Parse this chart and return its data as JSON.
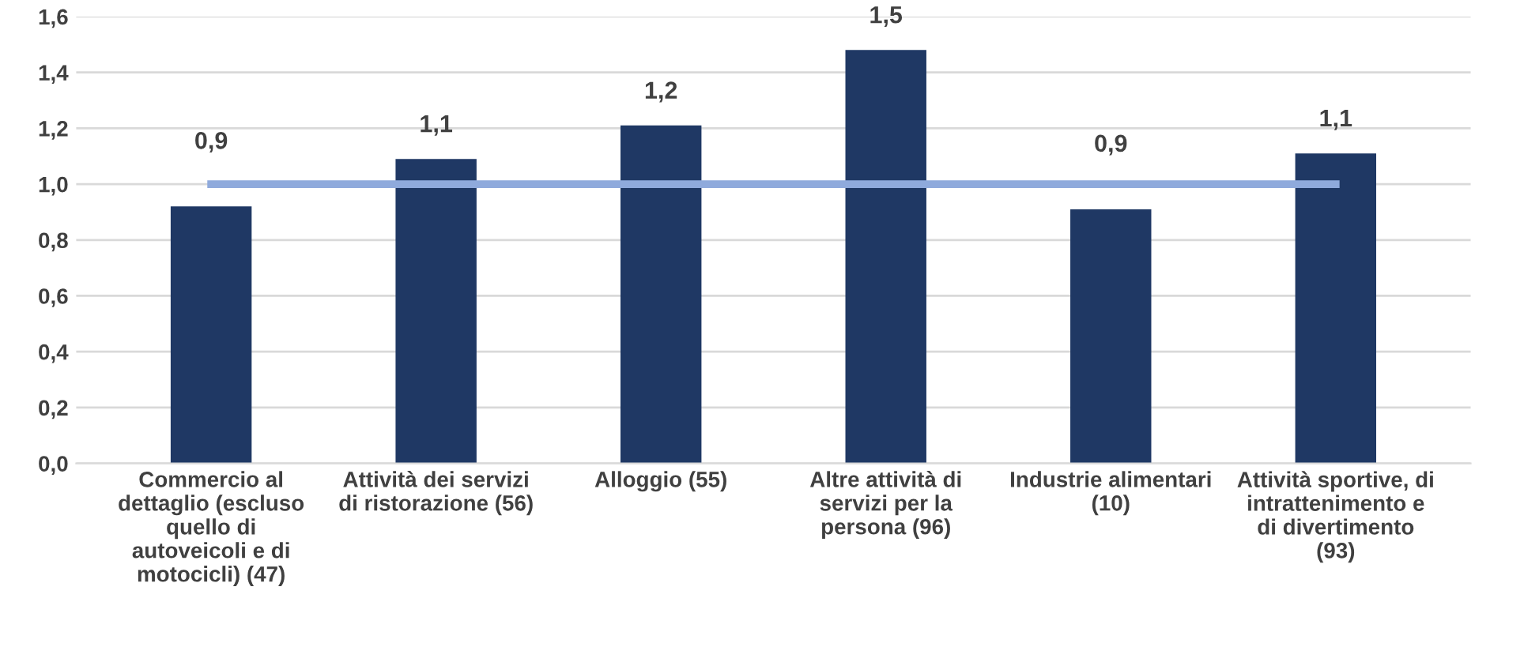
{
  "chart_data": {
    "type": "bar",
    "categories": [
      "Commercio al\ndettaglio (escluso\nquello di\nautoveicoli e di\nmotocicli) (47)",
      "Attività dei servizi\ndi ristorazione (56)",
      "Alloggio (55)",
      "Altre attività di\nservizi per la\npersona (96)",
      "Industrie alimentari\n(10)",
      "Attività sportive, di\nintrattenimento e\ndi divertimento\n(93)"
    ],
    "series": [
      {
        "color": "#1f3864",
        "values": [
          0.92,
          1.09,
          1.21,
          1.48,
          0.91,
          1.11
        ],
        "value_labels": [
          "0,9",
          "1,1",
          "1,2",
          "1,5",
          "0,9",
          "1,1"
        ]
      },
      {
        "type": "line",
        "color": "#8faadc",
        "values": [
          1.0,
          1.0,
          1.0,
          1.0,
          1.0,
          1.0
        ],
        "marker": "none"
      }
    ],
    "ylim": [
      0,
      1.6
    ],
    "yticks": [
      {
        "value": 0,
        "label": "0,0"
      },
      {
        "value": 0.2,
        "label": "0,2"
      },
      {
        "value": 0.4,
        "label": "0,4"
      },
      {
        "value": 0.6,
        "label": "0,6"
      },
      {
        "value": 0.8,
        "label": "0,8"
      },
      {
        "value": 1.0,
        "label": "1,0"
      },
      {
        "value": 1.2,
        "label": "1,2"
      },
      {
        "value": 1.4,
        "label": "1,4"
      },
      {
        "value": 1.6,
        "label": "1,6"
      }
    ],
    "grid": "y",
    "legend": false
  }
}
